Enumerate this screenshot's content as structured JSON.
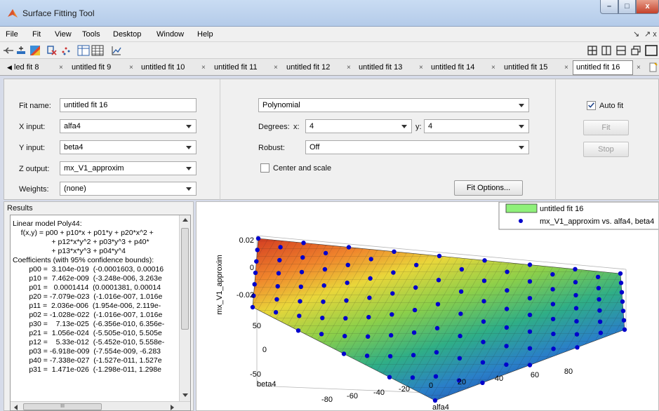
{
  "window": {
    "title": "Surface Fitting Tool",
    "min_label": "–",
    "max_label": "□",
    "close_label": "x"
  },
  "menu": {
    "items": [
      "File",
      "Fit",
      "View",
      "Tools",
      "Desktop",
      "Window",
      "Help"
    ],
    "right": [
      "↘",
      "↗ x"
    ]
  },
  "tabs": {
    "items": [
      "led fit 8",
      "untitled fit 9",
      "untitled fit 10",
      "untitled fit 11",
      "untitled fit 12",
      "untitled fit 13",
      "untitled fit 14",
      "untitled fit 15",
      "untitled fit 16"
    ],
    "close_glyph": "×",
    "scroll_left_glyph": "◀"
  },
  "fit": {
    "name_label": "Fit name:",
    "name_value": "untitled fit 16",
    "x_label": "X input:",
    "x_value": "alfa4",
    "y_label": "Y input:",
    "y_value": "beta4",
    "z_label": "Z output:",
    "z_value": "mx_V1_approxim",
    "weights_label": "Weights:",
    "weights_value": "(none)",
    "model_value": "Polynomial",
    "degrees_label": "Degrees:",
    "deg_x_label": "x:",
    "deg_x_value": "4",
    "deg_y_label": "y:",
    "deg_y_value": "4",
    "robust_label": "Robust:",
    "robust_value": "Off",
    "center_label": "Center and scale",
    "fit_options_label": "Fit Options...",
    "auto_fit_label": "Auto fit",
    "fit_button_label": "Fit",
    "stop_button_label": "Stop"
  },
  "results": {
    "title": "Results",
    "lines": [
      "Linear model Poly44:",
      "    f(x,y) = p00 + p10*x + p01*y + p20*x^2 +",
      "                   + p12*x*y^2 + p03*y^3 + p40*",
      "                   + p13*x*y^3 + p04*y^4",
      "Coefficients (with 95% confidence bounds):",
      "        p00 =  3.104e-019  (-0.0001603, 0.00016",
      "        p10 =  7.462e-009  (-3.248e-006, 3.263e",
      "        p01 =   0.0001414  (0.0001381, 0.00014",
      "        p20 = -7.079e-023  (-1.016e-007, 1.016e",
      "        p11 =  2.036e-006  (1.954e-006, 2.119e-",
      "        p02 = -1.028e-022  (-1.016e-007, 1.016e",
      "        p30 =    7.13e-025  (-6.356e-010, 6.356e-",
      "        p21 =  1.056e-024  (-5.505e-010, 5.505e",
      "        p12 =    5.33e-012  (-5.452e-010, 5.558e-",
      "        p03 = -6.918e-009  (-7.554e-009, -6.283",
      "        p40 = -7.338e-027  (-1.527e-011, 1.527e",
      "        p31 =  1.471e-026  (-1.298e-011, 1.298e"
    ],
    "hscroll_thumb": "III"
  },
  "plot": {
    "legend": [
      "untitled fit 16",
      "mx_V1_approxim vs. alfa4, beta4"
    ],
    "legend_sub": "V",
    "zlabel": "mx_V1_approxim",
    "zticks": [
      "0.02",
      "0",
      "-0.02"
    ],
    "yticks": [
      "50",
      "0",
      "-50"
    ],
    "xticks": [
      "-80",
      "-60",
      "-40",
      "-20",
      "0",
      "20",
      "40",
      "60",
      "80"
    ],
    "xlabel": "alfa4",
    "ylabel": "beta4",
    "surface_color": "#3aa07a",
    "point_color": "#0000cc"
  }
}
